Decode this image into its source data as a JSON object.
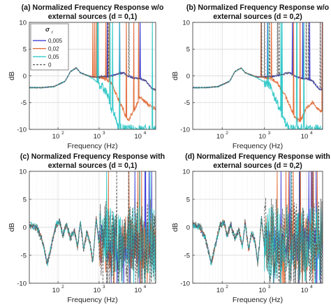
{
  "chart_data": [
    {
      "type": "line",
      "panel": "a",
      "title_line1": "(a) Normalized Frequency Response w/o",
      "title_line2": "external sources (d = 0,1)",
      "xlabel": "Frequency (Hz)",
      "ylabel": "dB",
      "xscale": "log",
      "xlim": [
        20,
        24000
      ],
      "ylim": [
        -10,
        10
      ],
      "yticks": [
        -10,
        -5,
        0,
        5,
        10
      ],
      "xtick_labels": [
        "10",
        "10",
        "10"
      ],
      "xtick_exponents": [
        "2",
        "3",
        "4"
      ],
      "grid": true,
      "legend": {
        "placement": "top-left",
        "title": "σ",
        "title_sub": "r",
        "entries": [
          "0,005",
          "0,02",
          "0,05",
          "0"
        ]
      },
      "series": [
        {
          "name": "0,005",
          "color": "#2b2bd1",
          "x": [
            20,
            40,
            80,
            150,
            200,
            280,
            350,
            500,
            700,
            1000,
            1500,
            2000,
            3000,
            4000,
            5000,
            7000,
            10000,
            14000,
            20000
          ],
          "y": [
            -2.2,
            -2.2,
            -2.0,
            -1.0,
            0.8,
            1.5,
            0.6,
            0.1,
            -0.2,
            -0.2,
            -0.1,
            0.0,
            0.4,
            0.6,
            0.0,
            -0.4,
            -0.5,
            -1.0,
            -2.5
          ]
        },
        {
          "name": "0,02",
          "color": "#e0622a",
          "x": [
            20,
            40,
            80,
            150,
            200,
            280,
            350,
            500,
            700,
            1000,
            1500,
            2000,
            3000,
            4000,
            5000,
            7000,
            10000,
            14000,
            20000
          ],
          "y": [
            -2.2,
            -2.2,
            -2.0,
            -1.0,
            0.8,
            1.5,
            0.6,
            0.1,
            -0.2,
            -0.3,
            -0.6,
            -1.2,
            -4.5,
            -6.5,
            -8.5,
            -6.5,
            -4.0,
            -5.0,
            -6.0
          ]
        },
        {
          "name": "0,05",
          "color": "#22c4c4",
          "x": [
            20,
            40,
            80,
            150,
            200,
            280,
            350,
            500,
            700,
            1000,
            1500,
            2000,
            3000,
            4000,
            5000,
            7000,
            10000,
            14000,
            20000
          ],
          "y": [
            -2.2,
            -2.2,
            -2.0,
            -1.0,
            0.8,
            1.5,
            0.6,
            0.1,
            -0.5,
            -1.5,
            -3.0,
            -6.0,
            -9.5,
            -10,
            -10,
            -10,
            -10,
            -10,
            -10
          ]
        },
        {
          "name": "0",
          "color": "#555555",
          "x": [
            20,
            40,
            80,
            150,
            200,
            280,
            350,
            500,
            700,
            1000,
            1500,
            2000,
            3000,
            4000,
            5000,
            7000,
            10000,
            14000,
            20000
          ],
          "y": [
            -2.2,
            -2.2,
            -2.0,
            -1.0,
            0.8,
            1.5,
            0.6,
            0.1,
            -0.2,
            -0.2,
            -0.1,
            0.0,
            0.4,
            0.6,
            0.0,
            -0.4,
            -0.5,
            -1.0,
            -2.5
          ]
        }
      ]
    },
    {
      "type": "line",
      "panel": "b",
      "title_line1": "(b) Normalized Frequency Response w/o",
      "title_line2": "external sources (d = 0,2)",
      "xlabel": "Frequency (Hz)",
      "ylabel": "dB",
      "xscale": "log",
      "xlim": [
        20,
        24000
      ],
      "ylim": [
        -10,
        10
      ],
      "yticks": [
        -10,
        -5,
        0,
        5,
        10
      ],
      "xtick_labels": [
        "10",
        "10",
        "10"
      ],
      "xtick_exponents": [
        "2",
        "3",
        "4"
      ],
      "grid": true,
      "series": [
        {
          "name": "0,005",
          "color": "#2b2bd1",
          "x": [
            20,
            40,
            80,
            150,
            200,
            280,
            350,
            500,
            700,
            1000,
            1500,
            2000,
            3000,
            4000,
            5000,
            7000,
            10000,
            14000,
            20000
          ],
          "y": [
            -2.2,
            -2.2,
            -2.0,
            -1.0,
            0.8,
            1.5,
            0.6,
            0.1,
            -0.2,
            -0.2,
            -0.1,
            0.0,
            0.4,
            0.6,
            0.0,
            -0.4,
            -0.5,
            -1.0,
            -2.5
          ]
        },
        {
          "name": "0,02",
          "color": "#e0622a",
          "x": [
            20,
            40,
            80,
            150,
            200,
            280,
            350,
            500,
            700,
            1000,
            1500,
            2000,
            3000,
            4000,
            5000,
            7000,
            10000,
            14000,
            20000
          ],
          "y": [
            -2.2,
            -2.2,
            -2.0,
            -1.0,
            0.8,
            1.5,
            0.6,
            0.1,
            -0.2,
            -0.3,
            -0.6,
            -1.2,
            -3.5,
            -5.5,
            -7.5,
            -8.5,
            -6.0,
            -5.0,
            -6.5
          ]
        },
        {
          "name": "0,05",
          "color": "#22c4c4",
          "x": [
            20,
            40,
            80,
            150,
            200,
            280,
            350,
            500,
            700,
            1000,
            1500,
            2000,
            3000,
            4000,
            5000,
            7000,
            10000,
            14000,
            20000
          ],
          "y": [
            -2.2,
            -2.2,
            -2.0,
            -1.0,
            0.8,
            1.5,
            0.6,
            0.1,
            -0.4,
            -1.2,
            -2.5,
            -5.0,
            -8.5,
            -10,
            -10,
            -10,
            -10,
            -10,
            -10
          ]
        },
        {
          "name": "0",
          "color": "#555555",
          "x": [
            20,
            40,
            80,
            150,
            200,
            280,
            350,
            500,
            700,
            1000,
            1500,
            2000,
            3000,
            4000,
            5000,
            7000,
            10000,
            14000,
            20000
          ],
          "y": [
            -2.2,
            -2.2,
            -2.0,
            -1.0,
            0.8,
            1.5,
            0.6,
            0.1,
            -0.2,
            -0.2,
            -0.1,
            0.0,
            0.4,
            0.6,
            0.0,
            -0.4,
            -0.5,
            -1.0,
            -2.5
          ]
        }
      ]
    },
    {
      "type": "line",
      "panel": "c",
      "title_line1": "(c) Normalized Frequency Response with",
      "title_line2": "external sources (d = 0,1)",
      "xlabel": "Frequency (Hz)",
      "ylabel": "dB",
      "xscale": "log",
      "xlim": [
        20,
        24000
      ],
      "ylim": [
        -10,
        10
      ],
      "yticks": [
        -10,
        -5,
        0,
        5,
        10
      ],
      "xtick_labels": [
        "10",
        "10",
        "10"
      ],
      "xtick_exponents": [
        "2",
        "3",
        "4"
      ],
      "grid": true,
      "series": [
        {
          "name": "0,005",
          "color": "#2b2bd1",
          "x": [
            20,
            30,
            40,
            55,
            70,
            90,
            110,
            130,
            160,
            200,
            250,
            300,
            350,
            420,
            500,
            600,
            700,
            850,
            1000
          ],
          "y": [
            0.5,
            0.0,
            -2.0,
            -6.5,
            -3.0,
            0.5,
            1.0,
            -1.5,
            0.5,
            -2.0,
            -0.5,
            -3.5,
            1.0,
            -4.0,
            -1.0,
            -2.5,
            -6.5,
            1.5,
            -3.0
          ]
        },
        {
          "name": "0,02",
          "color": "#e0622a",
          "x": [
            20,
            30,
            40,
            55,
            70,
            90,
            110,
            130,
            160,
            200,
            250,
            300,
            350,
            420,
            500,
            600,
            700,
            850,
            1000
          ],
          "y": [
            0.5,
            0.0,
            -2.0,
            -6.5,
            -3.0,
            0.5,
            1.0,
            -1.5,
            0.5,
            -2.0,
            -0.5,
            -3.5,
            1.0,
            -4.0,
            -1.0,
            -2.5,
            -6.5,
            1.5,
            -3.0
          ]
        },
        {
          "name": "0,05",
          "color": "#22c4c4",
          "x": [
            20,
            30,
            40,
            55,
            70,
            90,
            110,
            130,
            160,
            200,
            250,
            300,
            350,
            420,
            500,
            600,
            700,
            850,
            1000
          ],
          "y": [
            0.5,
            0.0,
            -2.0,
            -6.5,
            -3.0,
            0.5,
            1.0,
            -1.5,
            0.5,
            -2.0,
            -0.5,
            -3.5,
            1.0,
            -4.0,
            -1.0,
            -2.5,
            -6.5,
            1.5,
            -3.0
          ]
        },
        {
          "name": "0",
          "color": "#555555",
          "x": [
            20,
            30,
            40,
            55,
            70,
            90,
            110,
            130,
            160,
            200,
            250,
            300,
            350,
            420,
            500,
            600,
            700,
            850,
            1000
          ],
          "y": [
            0.5,
            0.0,
            -2.0,
            -6.5,
            -3.0,
            0.5,
            1.0,
            -1.5,
            0.5,
            -2.0,
            -0.5,
            -3.5,
            1.0,
            -4.0,
            -1.0,
            -2.5,
            -6.5,
            1.5,
            -3.0
          ]
        }
      ]
    },
    {
      "type": "line",
      "panel": "d",
      "title_line1": "(d) Normalized Frequency Response with",
      "title_line2": "external sources (d = 0,2)",
      "xlabel": "Frequency (Hz)",
      "ylabel": "dB",
      "xscale": "log",
      "xlim": [
        20,
        24000
      ],
      "ylim": [
        -10,
        10
      ],
      "yticks": [
        -10,
        -5,
        0,
        5,
        10
      ],
      "xtick_labels": [
        "10",
        "10",
        "10"
      ],
      "xtick_exponents": [
        "2",
        "3",
        "4"
      ],
      "grid": true,
      "series": [
        {
          "name": "0,005",
          "color": "#2b2bd1",
          "x": [
            20,
            30,
            40,
            55,
            70,
            90,
            110,
            130,
            160,
            200,
            250,
            300,
            350,
            420,
            500,
            600,
            700,
            850,
            1000
          ],
          "y": [
            0.5,
            0.0,
            -2.0,
            -6.5,
            -3.0,
            0.5,
            1.0,
            -1.5,
            0.5,
            -2.0,
            -0.5,
            -3.5,
            1.0,
            -4.0,
            -1.0,
            -2.5,
            -6.5,
            1.5,
            -3.0
          ]
        },
        {
          "name": "0,02",
          "color": "#e0622a",
          "x": [
            20,
            30,
            40,
            55,
            70,
            90,
            110,
            130,
            160,
            200,
            250,
            300,
            350,
            420,
            500,
            600,
            700,
            850,
            1000
          ],
          "y": [
            0.5,
            0.0,
            -2.0,
            -6.5,
            -3.0,
            0.5,
            1.0,
            -1.5,
            0.5,
            -2.0,
            -0.5,
            -3.5,
            1.0,
            -4.0,
            -1.0,
            -2.5,
            -6.5,
            1.5,
            -3.0
          ]
        },
        {
          "name": "0,05",
          "color": "#22c4c4",
          "x": [
            20,
            30,
            40,
            55,
            70,
            90,
            110,
            130,
            160,
            200,
            250,
            300,
            350,
            420,
            500,
            600,
            700,
            850,
            1000
          ],
          "y": [
            0.5,
            0.0,
            -2.0,
            -6.5,
            -3.0,
            0.5,
            1.0,
            -1.5,
            0.5,
            -2.0,
            -0.5,
            -3.5,
            1.0,
            -4.0,
            -1.0,
            -2.5,
            -6.5,
            1.5,
            -3.0
          ]
        },
        {
          "name": "0",
          "color": "#555555",
          "x": [
            20,
            30,
            40,
            55,
            70,
            90,
            110,
            130,
            160,
            200,
            250,
            300,
            350,
            420,
            500,
            600,
            700,
            850,
            1000
          ],
          "y": [
            0.5,
            0.0,
            -2.0,
            -6.5,
            -3.0,
            0.5,
            1.0,
            -1.5,
            0.5,
            -2.0,
            -0.5,
            -3.5,
            1.0,
            -4.0,
            -1.0,
            -2.5,
            -6.5,
            1.5,
            -3.0
          ]
        }
      ]
    }
  ]
}
